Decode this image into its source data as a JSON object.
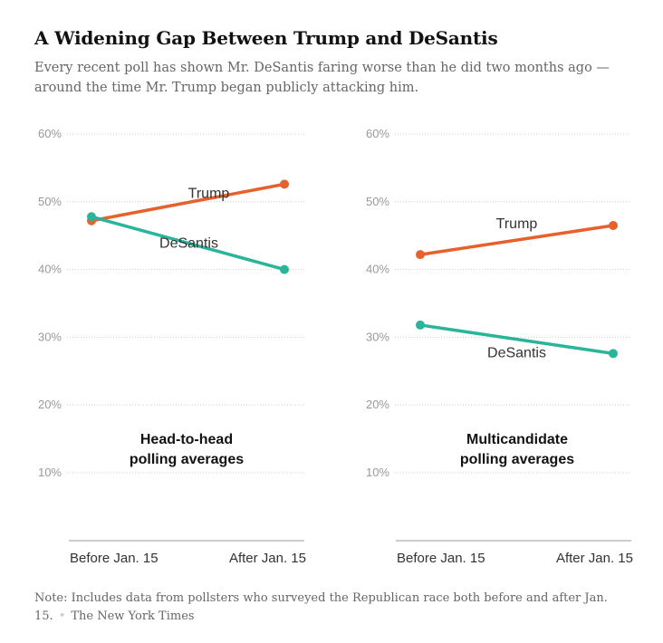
{
  "title": "A Widening Gap Between Trump and DeSantis",
  "subtitle": "Every recent poll has shown Mr. DeSantis faring worse than he did two months ago — around the time Mr. Trump began publicly attacking him.",
  "note": "Note: Includes data from pollsters who surveyed the Republican race both before and after Jan. 15.",
  "source": "The New York Times",
  "colors": {
    "trump": "#e8602c",
    "desantis": "#2ab59a",
    "grid": "#cccccc",
    "axis": "#999999"
  },
  "chart_data": [
    {
      "type": "line",
      "title_lines": [
        "Head-to-head",
        "polling averages"
      ],
      "categories": [
        "Before Jan. 15",
        "After Jan. 15"
      ],
      "y_ticks": [
        10,
        20,
        30,
        40,
        50,
        60
      ],
      "y_tick_labels": [
        "10%",
        "20%",
        "30%",
        "40%",
        "50%",
        "60%"
      ],
      "ylim": [
        0,
        60
      ],
      "series": [
        {
          "name": "Trump",
          "color_key": "trump",
          "values": [
            47.2,
            52.6
          ]
        },
        {
          "name": "DeSantis",
          "color_key": "desantis",
          "values": [
            47.8,
            40.0
          ]
        }
      ]
    },
    {
      "type": "line",
      "title_lines": [
        "Multicandidate",
        "polling averages"
      ],
      "categories": [
        "Before Jan. 15",
        "After Jan. 15"
      ],
      "y_ticks": [
        10,
        20,
        30,
        40,
        50,
        60
      ],
      "y_tick_labels": [
        "10%",
        "20%",
        "30%",
        "40%",
        "50%",
        "60%"
      ],
      "ylim": [
        0,
        60
      ],
      "series": [
        {
          "name": "Trump",
          "color_key": "trump",
          "values": [
            42.2,
            46.5
          ]
        },
        {
          "name": "DeSantis",
          "color_key": "desantis",
          "values": [
            31.8,
            27.6
          ]
        }
      ]
    }
  ]
}
